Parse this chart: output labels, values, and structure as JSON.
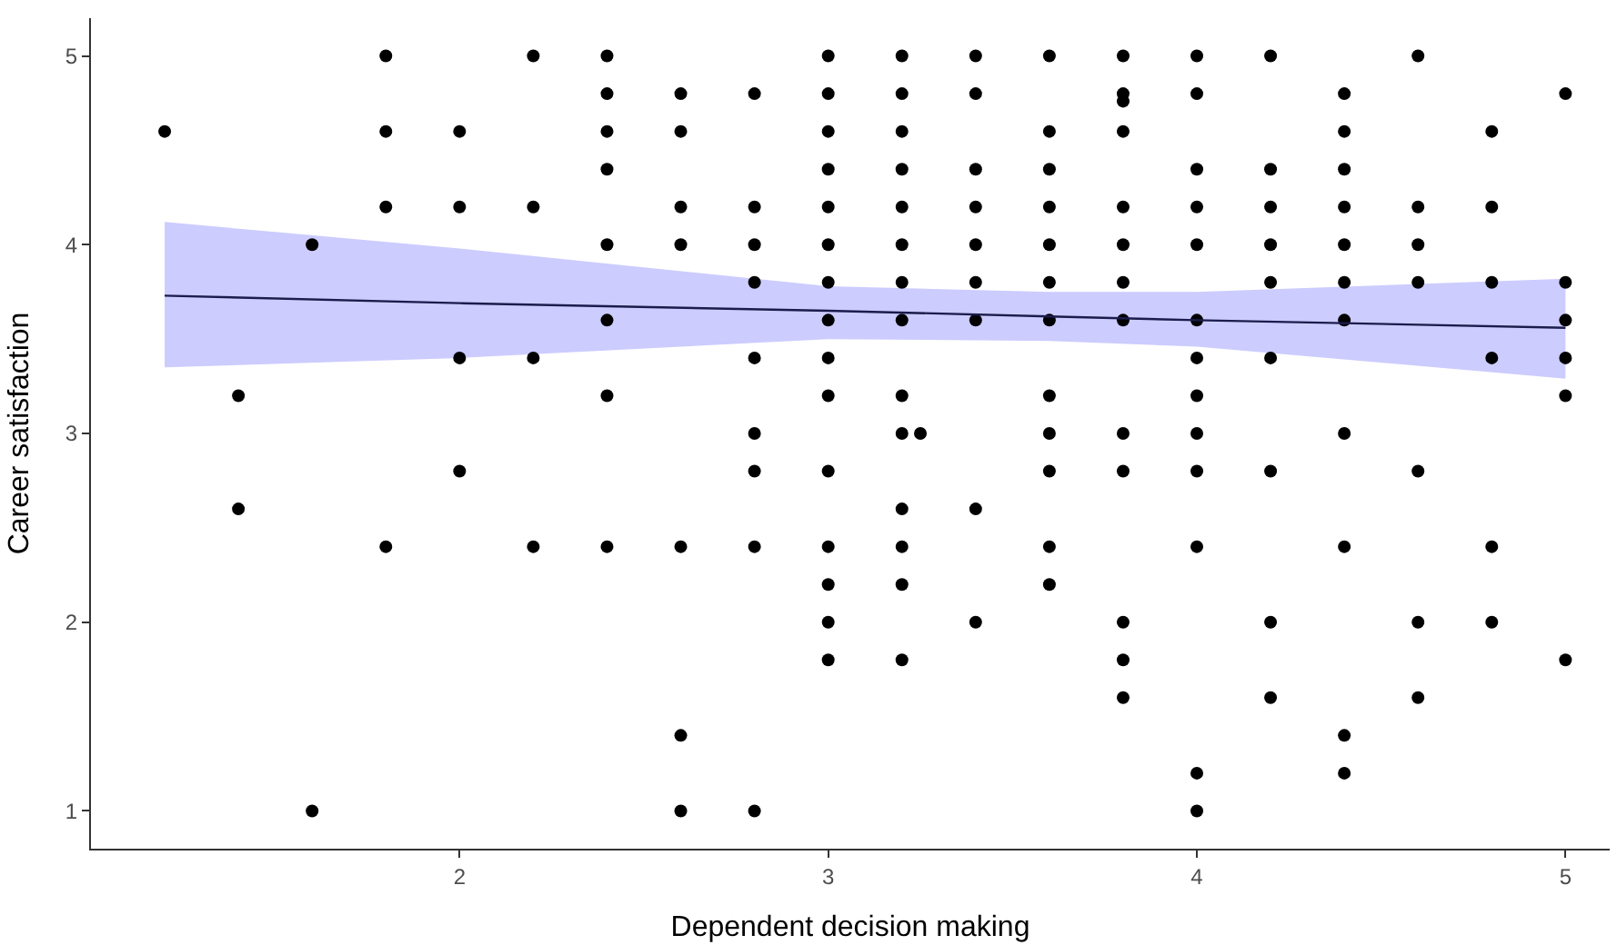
{
  "chart_data": {
    "type": "scatter",
    "xlabel": "Dependent decision making",
    "ylabel": "Career satisfaction",
    "xlim": [
      1.0,
      5.12
    ],
    "ylim": [
      0.8,
      5.2
    ],
    "xticks": [
      2,
      3,
      4,
      5
    ],
    "yticks": [
      1,
      2,
      3,
      4,
      5
    ],
    "grid": false,
    "marker": "circle",
    "series": [
      {
        "color": "#000000",
        "x": [
          1.2,
          1.4,
          1.4,
          1.6,
          1.6,
          1.8,
          1.8,
          1.8,
          1.8,
          2.0,
          2.0,
          2.0,
          2.0,
          2.2,
          2.2,
          2.2,
          2.2,
          2.4,
          2.4,
          2.4,
          2.4,
          2.4,
          2.4,
          2.4,
          2.4,
          2.6,
          2.6,
          2.6,
          2.6,
          2.6,
          2.6,
          2.6,
          2.8,
          2.8,
          2.8,
          2.8,
          2.8,
          2.8,
          2.8,
          2.8,
          2.8,
          3.0,
          3.0,
          3.0,
          3.0,
          3.0,
          3.0,
          3.0,
          3.0,
          3.0,
          3.0,
          3.0,
          3.0,
          3.0,
          3.0,
          3.0,
          3.2,
          3.2,
          3.2,
          3.2,
          3.2,
          3.2,
          3.2,
          3.2,
          3.2,
          3.2,
          3.2,
          3.2,
          3.2,
          3.2,
          3.25,
          3.4,
          3.4,
          3.4,
          3.4,
          3.4,
          3.4,
          3.4,
          3.4,
          3.4,
          3.6,
          3.6,
          3.6,
          3.6,
          3.6,
          3.6,
          3.6,
          3.6,
          3.6,
          3.6,
          3.6,
          3.6,
          3.8,
          3.8,
          3.8,
          3.8,
          3.8,
          3.8,
          3.8,
          3.8,
          3.8,
          3.8,
          3.8,
          3.8,
          3.8,
          4.0,
          4.0,
          4.0,
          4.0,
          4.0,
          4.0,
          4.0,
          4.0,
          4.0,
          4.0,
          4.0,
          4.0,
          4.0,
          4.2,
          4.2,
          4.2,
          4.2,
          4.2,
          4.2,
          4.2,
          4.2,
          4.2,
          4.4,
          4.4,
          4.4,
          4.4,
          4.4,
          4.4,
          4.4,
          4.4,
          4.4,
          4.4,
          4.4,
          4.6,
          4.6,
          4.6,
          4.6,
          4.6,
          4.6,
          4.6,
          4.8,
          4.8,
          4.8,
          4.8,
          4.8,
          4.8,
          5.0,
          5.0,
          5.0,
          5.0,
          5.0,
          5.0
        ],
        "values": [
          4.6,
          3.2,
          2.6,
          4.0,
          1.0,
          5.0,
          4.6,
          4.2,
          2.4,
          4.6,
          4.2,
          3.4,
          2.8,
          5.0,
          4.2,
          3.4,
          2.4,
          5.0,
          4.8,
          4.6,
          4.4,
          4.0,
          3.6,
          3.2,
          2.4,
          4.8,
          4.6,
          4.2,
          4.0,
          2.4,
          1.4,
          1.0,
          4.8,
          4.2,
          4.0,
          3.8,
          3.4,
          3.0,
          2.8,
          2.4,
          1.0,
          5.0,
          4.8,
          4.6,
          4.4,
          4.2,
          4.0,
          3.8,
          3.6,
          3.4,
          3.2,
          2.8,
          2.4,
          2.2,
          2.0,
          1.8,
          5.0,
          4.8,
          4.6,
          4.4,
          4.2,
          4.0,
          3.8,
          3.6,
          3.2,
          3.0,
          2.6,
          2.4,
          2.2,
          1.8,
          3.0,
          5.0,
          4.8,
          4.4,
          4.2,
          4.0,
          3.8,
          3.6,
          2.6,
          2.0,
          5.0,
          4.6,
          4.4,
          4.2,
          4.0,
          3.8,
          3.6,
          3.2,
          3.0,
          2.8,
          2.4,
          2.2,
          5.0,
          4.8,
          4.76,
          4.6,
          4.2,
          4.0,
          3.8,
          3.6,
          3.0,
          2.8,
          2.0,
          1.8,
          1.6,
          5.0,
          4.8,
          4.4,
          4.2,
          4.0,
          3.6,
          3.4,
          3.2,
          3.0,
          2.8,
          2.4,
          1.2,
          1.0,
          5.0,
          4.4,
          4.2,
          4.0,
          3.8,
          3.4,
          2.8,
          2.0,
          1.6,
          4.8,
          4.6,
          4.4,
          4.2,
          4.0,
          3.8,
          3.6,
          3.0,
          2.4,
          1.4,
          1.2,
          5.0,
          4.2,
          4.0,
          3.8,
          2.8,
          2.0,
          1.6,
          4.6,
          4.2,
          3.8,
          3.4,
          2.4,
          2.0,
          4.8,
          3.8,
          3.6,
          3.4,
          3.2,
          1.8
        ]
      },
      {
        "type": "line",
        "color": "#1c1c4c",
        "marker": "none",
        "line_style": "solid",
        "x": [
          1.2,
          2.0,
          3.0,
          3.6,
          4.0,
          5.0
        ],
        "values": [
          3.73,
          3.69,
          3.65,
          3.62,
          3.6,
          3.56
        ],
        "lower": [
          3.35,
          3.4,
          3.5,
          3.49,
          3.46,
          3.29
        ],
        "upper": [
          4.12,
          3.98,
          3.78,
          3.75,
          3.75,
          3.82
        ]
      }
    ]
  }
}
